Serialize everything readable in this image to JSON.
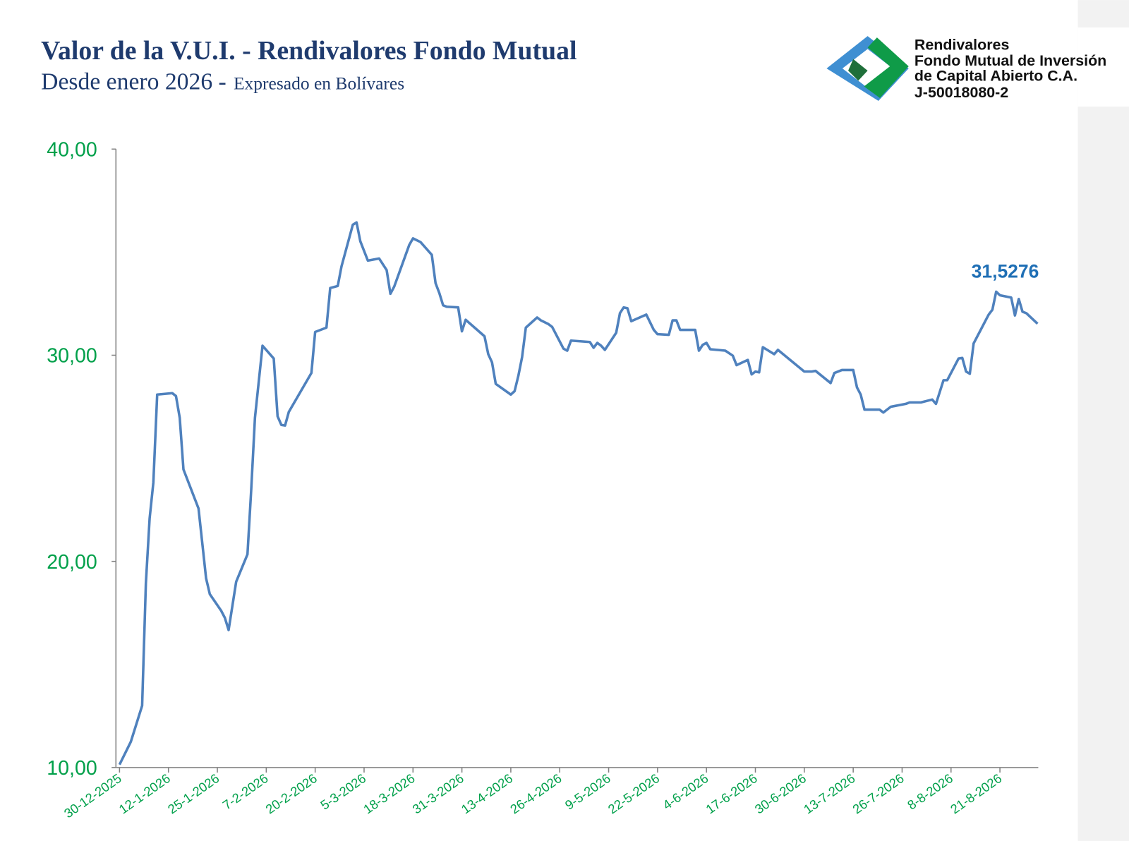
{
  "company": {
    "name": "Rendivalores",
    "lines": [
      "Fondo Mutual de Inversión",
      "de Capital Abierto C.A.",
      "J-50018080-2"
    ]
  },
  "chart_data": {
    "type": "line",
    "title": "Valor de la V.U.I. - Rendivalores Fondo Mutual",
    "subtitle": "Desde enero 2026 -",
    "unit_note": "Expresado en Bolívares",
    "color": "#4f81bd",
    "x": [
      "30-12-2025",
      "2-1-2026",
      "5-1-2026",
      "6-1-2026",
      "7-1-2026",
      "8-1-2026",
      "9-1-2026",
      "13-1-2026",
      "14-1-2026",
      "15-1-2026",
      "16-1-2026",
      "20-1-2026",
      "21-1-2026",
      "22-1-2026",
      "23-1-2026",
      "26-1-2026",
      "27-1-2026",
      "28-1-2026",
      "30-1-2026",
      "2-2-2026",
      "3-2-2026",
      "4-2-2026",
      "6-2-2026",
      "9-2-2026",
      "10-2-2026",
      "11-2-2026",
      "12-2-2026",
      "13-2-2026",
      "19-2-2026",
      "20-2-2026",
      "23-2-2026",
      "24-2-2026",
      "26-2-2026",
      "27-2-2026",
      "2-3-2026",
      "3-3-2026",
      "4-3-2026",
      "6-3-2026",
      "9-3-2026",
      "11-3-2026",
      "12-3-2026",
      "13-3-2026",
      "17-3-2026",
      "18-3-2026",
      "20-3-2026",
      "23-3-2026",
      "24-3-2026",
      "25-3-2026",
      "26-3-2026",
      "27-3-2026",
      "30-3-2026",
      "31-3-2026",
      "1-4-2026",
      "6-4-2026",
      "7-4-2026",
      "8-4-2026",
      "9-4-2026",
      "13-4-2026",
      "14-4-2026",
      "15-4-2026",
      "16-4-2026",
      "17-4-2026",
      "20-4-2026",
      "21-4-2026",
      "23-4-2026",
      "24-4-2026",
      "27-4-2026",
      "28-4-2026",
      "29-4-2026",
      "4-5-2026",
      "5-5-2026",
      "6-5-2026",
      "7-5-2026",
      "8-5-2026",
      "11-5-2026",
      "12-5-2026",
      "13-5-2026",
      "14-5-2026",
      "15-5-2026",
      "19-5-2026",
      "21-5-2026",
      "22-5-2026",
      "25-5-2026",
      "26-5-2026",
      "27-5-2026",
      "28-5-2026",
      "1-6-2026",
      "2-6-2026",
      "3-6-2026",
      "4-6-2026",
      "5-6-2026",
      "9-6-2026",
      "11-6-2026",
      "12-6-2026",
      "15-6-2026",
      "16-6-2026",
      "17-6-2026",
      "18-6-2026",
      "19-6-2026",
      "22-6-2026",
      "23-6-2026",
      "30-6-2026",
      "2-7-2026",
      "3-7-2026",
      "7-7-2026",
      "8-7-2026",
      "10-7-2026",
      "13-7-2026",
      "14-7-2026",
      "15-7-2026",
      "16-7-2026",
      "20-7-2026",
      "21-7-2026",
      "23-7-2026",
      "27-7-2026",
      "28-7-2026",
      "31-7-2026",
      "3-8-2026",
      "4-8-2026",
      "6-8-2026",
      "7-8-2026",
      "10-8-2026",
      "11-8-2026",
      "12-8-2026",
      "13-8-2026",
      "14-8-2026",
      "18-8-2026",
      "19-8-2026",
      "20-8-2026",
      "21-8-2026",
      "24-8-2026",
      "25-8-2026",
      "26-8-2026",
      "27-8-2026",
      "28-8-2026",
      "31-8-2026"
    ],
    "values": [
      10.14,
      11.25,
      13,
      18.94,
      22.08,
      23.83,
      28.09,
      28.16,
      28.02,
      26.97,
      24.46,
      22.57,
      20.86,
      19.18,
      18.41,
      17.61,
      17.26,
      16.67,
      19.01,
      20.34,
      23.48,
      26.97,
      30.46,
      29.84,
      27.04,
      26.62,
      26.59,
      27.25,
      29.14,
      31.13,
      31.34,
      33.26,
      33.36,
      34.31,
      36.33,
      36.44,
      35.53,
      34.59,
      34.69,
      34.13,
      32.98,
      33.33,
      35.35,
      35.67,
      35.49,
      34.87,
      33.5,
      33.01,
      32.42,
      32.35,
      32.32,
      31.16,
      31.72,
      30.92,
      30.05,
      29.66,
      28.61,
      28.09,
      28.26,
      29,
      29.91,
      31.34,
      31.83,
      31.69,
      31.51,
      31.37,
      30.32,
      30.22,
      30.71,
      30.64,
      30.36,
      30.6,
      30.46,
      30.26,
      31.09,
      32.04,
      32.32,
      32.28,
      31.65,
      31.97,
      31.23,
      31.02,
      30.99,
      31.69,
      31.69,
      31.23,
      31.23,
      30.22,
      30.5,
      30.6,
      30.29,
      30.22,
      29.98,
      29.52,
      29.77,
      29.07,
      29.21,
      29.17,
      30.39,
      30.05,
      30.26,
      29.21,
      29.21,
      29.24,
      28.65,
      29.14,
      29.28,
      29.28,
      28.44,
      28.09,
      27.36,
      27.36,
      27.22,
      27.5,
      27.64,
      27.71,
      27.71,
      27.85,
      27.64,
      28.79,
      28.79,
      29.84,
      29.87,
      29.21,
      29.1,
      30.57,
      31.97,
      32.21,
      33.08,
      32.91,
      32.8,
      31.93,
      32.73,
      32.11,
      32.04,
      31.5276
    ],
    "value_labels": [
      null,
      null,
      null,
      null,
      null,
      null,
      null,
      null,
      null,
      null,
      null,
      null,
      null,
      null,
      null,
      null,
      null,
      null,
      null,
      null,
      null,
      null,
      null,
      null,
      null,
      null,
      null,
      null,
      null,
      null,
      null,
      null,
      null,
      null,
      null,
      null,
      null,
      null,
      null,
      null,
      null,
      null,
      null,
      null,
      null,
      null,
      null,
      null,
      null,
      null,
      null,
      null,
      null,
      null,
      null,
      null,
      null,
      null,
      null,
      null,
      null,
      null,
      null,
      null,
      null,
      null,
      null,
      null,
      null,
      null,
      null,
      null,
      null,
      null,
      null,
      null,
      null,
      null,
      null,
      null,
      null,
      null,
      null,
      null,
      null,
      null,
      null,
      null,
      null,
      null,
      null,
      null,
      null,
      null,
      null,
      null,
      null,
      null,
      null,
      null,
      null,
      null,
      null,
      null,
      null,
      null,
      null,
      null,
      null,
      null,
      null,
      null,
      null,
      null,
      null,
      null,
      null,
      null,
      null,
      null,
      null,
      null,
      null,
      null,
      null,
      null,
      null,
      null,
      null,
      null,
      null,
      null,
      null,
      null,
      null,
      "31,5276"
    ],
    "xlim": [
      "30-12-2025",
      "31-8-2026"
    ],
    "xticks": [
      "30-12-2025",
      "12-1-2026",
      "25-1-2026",
      "7-2-2026",
      "20-2-2026",
      "5-3-2026",
      "18-3-2026",
      "31-3-2026",
      "13-4-2026",
      "26-4-2026",
      "9-5-2026",
      "22-5-2026",
      "4-6-2026",
      "17-6-2026",
      "30-6-2026",
      "13-7-2026",
      "26-7-2026",
      "8-8-2026",
      "21-8-2026"
    ],
    "ylim": [
      10,
      40
    ],
    "yticks": [
      {
        "value": 10,
        "label": "10,00"
      },
      {
        "value": 20,
        "label": "20,00"
      },
      {
        "value": 30,
        "label": "30,00"
      },
      {
        "value": 40,
        "label": "40,00"
      }
    ],
    "grid": false
  }
}
